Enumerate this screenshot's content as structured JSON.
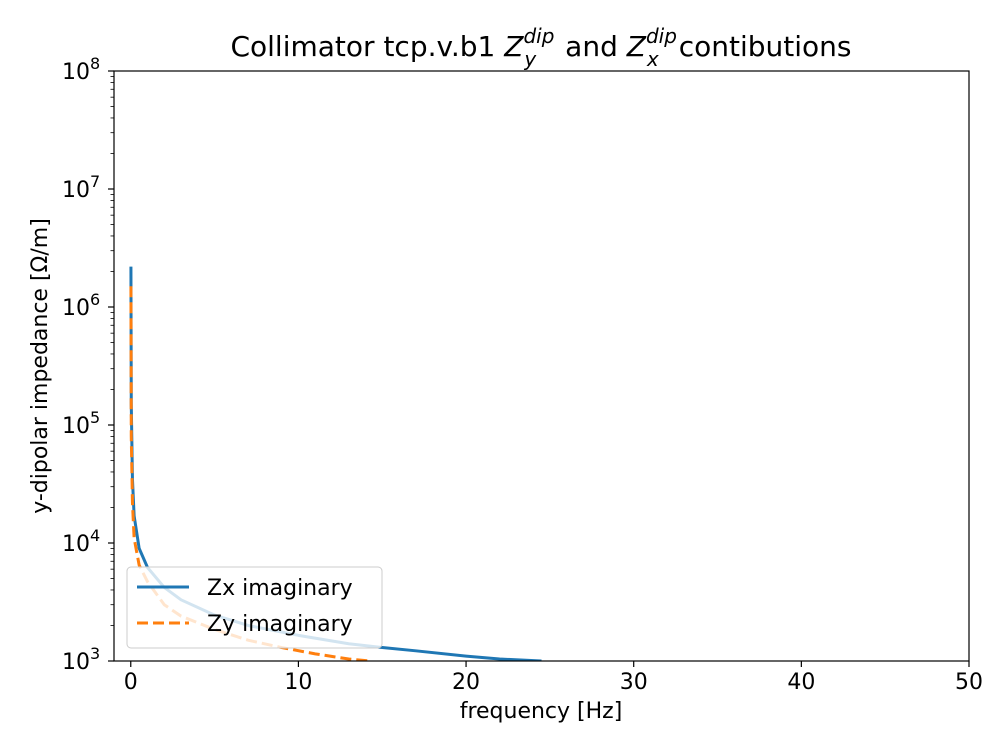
{
  "chart_data": {
    "type": "line",
    "title": {
      "prefix": "Collimator tcp.v.b1 ",
      "z1_base": "Z",
      "z1_sup": "dip",
      "z1_sub": "y",
      "middle": " and ",
      "z2_base": "Z",
      "z2_sup": "dip",
      "z2_sub": "x",
      "suffix": "contibutions"
    },
    "xlabel": "frequency [Hz]",
    "ylabel": "y-dipolar impedance [Ω/m]",
    "xlim": [
      -1,
      50
    ],
    "ylim": [
      1000,
      100000000
    ],
    "yscale": "log",
    "xticks": [
      {
        "value": 0,
        "label": "0"
      },
      {
        "value": 10,
        "label": "10"
      },
      {
        "value": 20,
        "label": "20"
      },
      {
        "value": 30,
        "label": "30"
      },
      {
        "value": 40,
        "label": "40"
      },
      {
        "value": 50,
        "label": "50"
      }
    ],
    "yticks": [
      {
        "value": 1000,
        "base": "10",
        "exp": "3"
      },
      {
        "value": 10000,
        "base": "10",
        "exp": "4"
      },
      {
        "value": 100000,
        "base": "10",
        "exp": "5"
      },
      {
        "value": 1000000,
        "base": "10",
        "exp": "6"
      },
      {
        "value": 10000000,
        "base": "10",
        "exp": "7"
      },
      {
        "value": 100000000,
        "base": "10",
        "exp": "8"
      }
    ],
    "grid": false,
    "legend": {
      "placement": "lower-left"
    },
    "series": [
      {
        "name": "Zx imaginary",
        "color": "#1f77b4",
        "dash": "solid",
        "x": [
          0.01,
          0.03,
          0.1,
          0.2,
          0.5,
          1,
          2,
          3,
          5,
          7,
          10,
          13,
          15,
          17,
          20,
          22,
          24.5
        ],
        "y": [
          2200000,
          150000,
          35000,
          17000,
          9000,
          6200,
          4200,
          3300,
          2450,
          2000,
          1650,
          1400,
          1300,
          1220,
          1100,
          1040,
          1000
        ]
      },
      {
        "name": "Zy imaginary",
        "color": "#ff7f0e",
        "dash": "dashed",
        "x": [
          0.01,
          0.03,
          0.1,
          0.2,
          0.5,
          1,
          2,
          3,
          5,
          7,
          9,
          11,
          13,
          14.3
        ],
        "y": [
          1500000,
          80000,
          22000,
          11000,
          6500,
          4700,
          3000,
          2400,
          1850,
          1500,
          1300,
          1150,
          1040,
          1000
        ]
      }
    ]
  }
}
